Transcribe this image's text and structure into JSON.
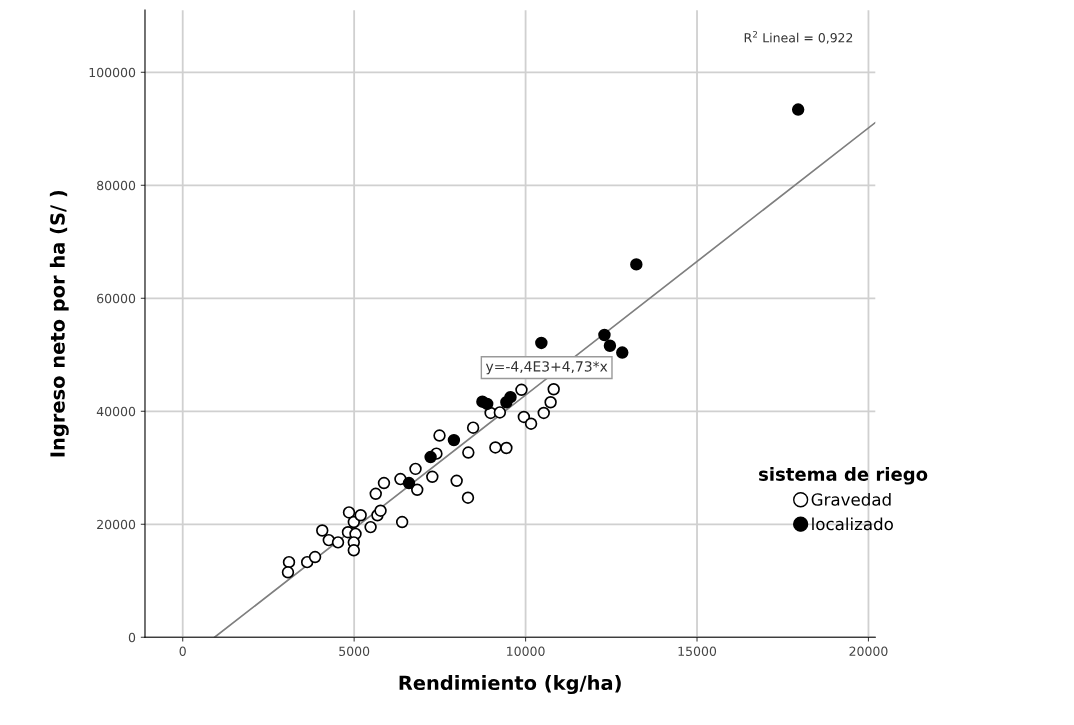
{
  "chart_data": {
    "type": "scatter",
    "xlabel": "Rendimiento (kg/ha)",
    "ylabel": "Ingreso neto por ha (S/ )",
    "legend_title": "sistema de riego",
    "xlim": [
      -1100,
      20200
    ],
    "xticks": [
      0,
      5000,
      10000,
      15000,
      20000
    ],
    "ylim": [
      0,
      111000
    ],
    "yticks": [
      0,
      20000,
      40000,
      60000,
      80000,
      100000
    ],
    "grid": true,
    "legend": "right",
    "annotations": [
      "R$^{2}$ Lineal = 0,922",
      "y=-4,4E3+4,73*x"
    ],
    "series": [
      {
        "name": "Gravedad",
        "color": "#ffffff",
        "marker": "circle",
        "x": [
          3100,
          3070,
          3630,
          3860,
          4070,
          4260,
          4530,
          4850,
          4820,
          4990,
          5040,
          4990,
          4990,
          5190,
          5480,
          5680,
          5770,
          5630,
          5870,
          6400,
          6350,
          6840,
          6790,
          7280,
          7400,
          7490,
          7990,
          8320,
          8330,
          8470,
          8980,
          9250,
          9120,
          9440,
          9880,
          9950,
          10160,
          10530,
          10730,
          10820
        ],
        "values": [
          13300,
          11500,
          13300,
          14200,
          18900,
          17200,
          16800,
          22100,
          18600,
          20400,
          18300,
          16800,
          15400,
          21600,
          19500,
          21600,
          22400,
          25400,
          27300,
          20400,
          28000,
          26100,
          29800,
          28400,
          32500,
          35700,
          27700,
          24700,
          32700,
          37100,
          39700,
          39800,
          33600,
          33500,
          43800,
          39000,
          37800,
          39700,
          41600,
          43900
        ]
      },
      {
        "name": "localizado",
        "color": "#000000",
        "marker": "circle",
        "x": [
          6600,
          7230,
          7910,
          8740,
          8880,
          9440,
          9560,
          10460,
          12300,
          12460,
          12820,
          13230,
          17950
        ],
        "values": [
          27300,
          31900,
          34900,
          41700,
          41300,
          41600,
          42500,
          52100,
          53500,
          51600,
          50400,
          66000,
          93400
        ]
      },
      {
        "type": "line",
        "color": "#7f7f7f",
        "x": [
          930,
          20200
        ],
        "values": [
          0,
          91100
        ]
      }
    ]
  }
}
